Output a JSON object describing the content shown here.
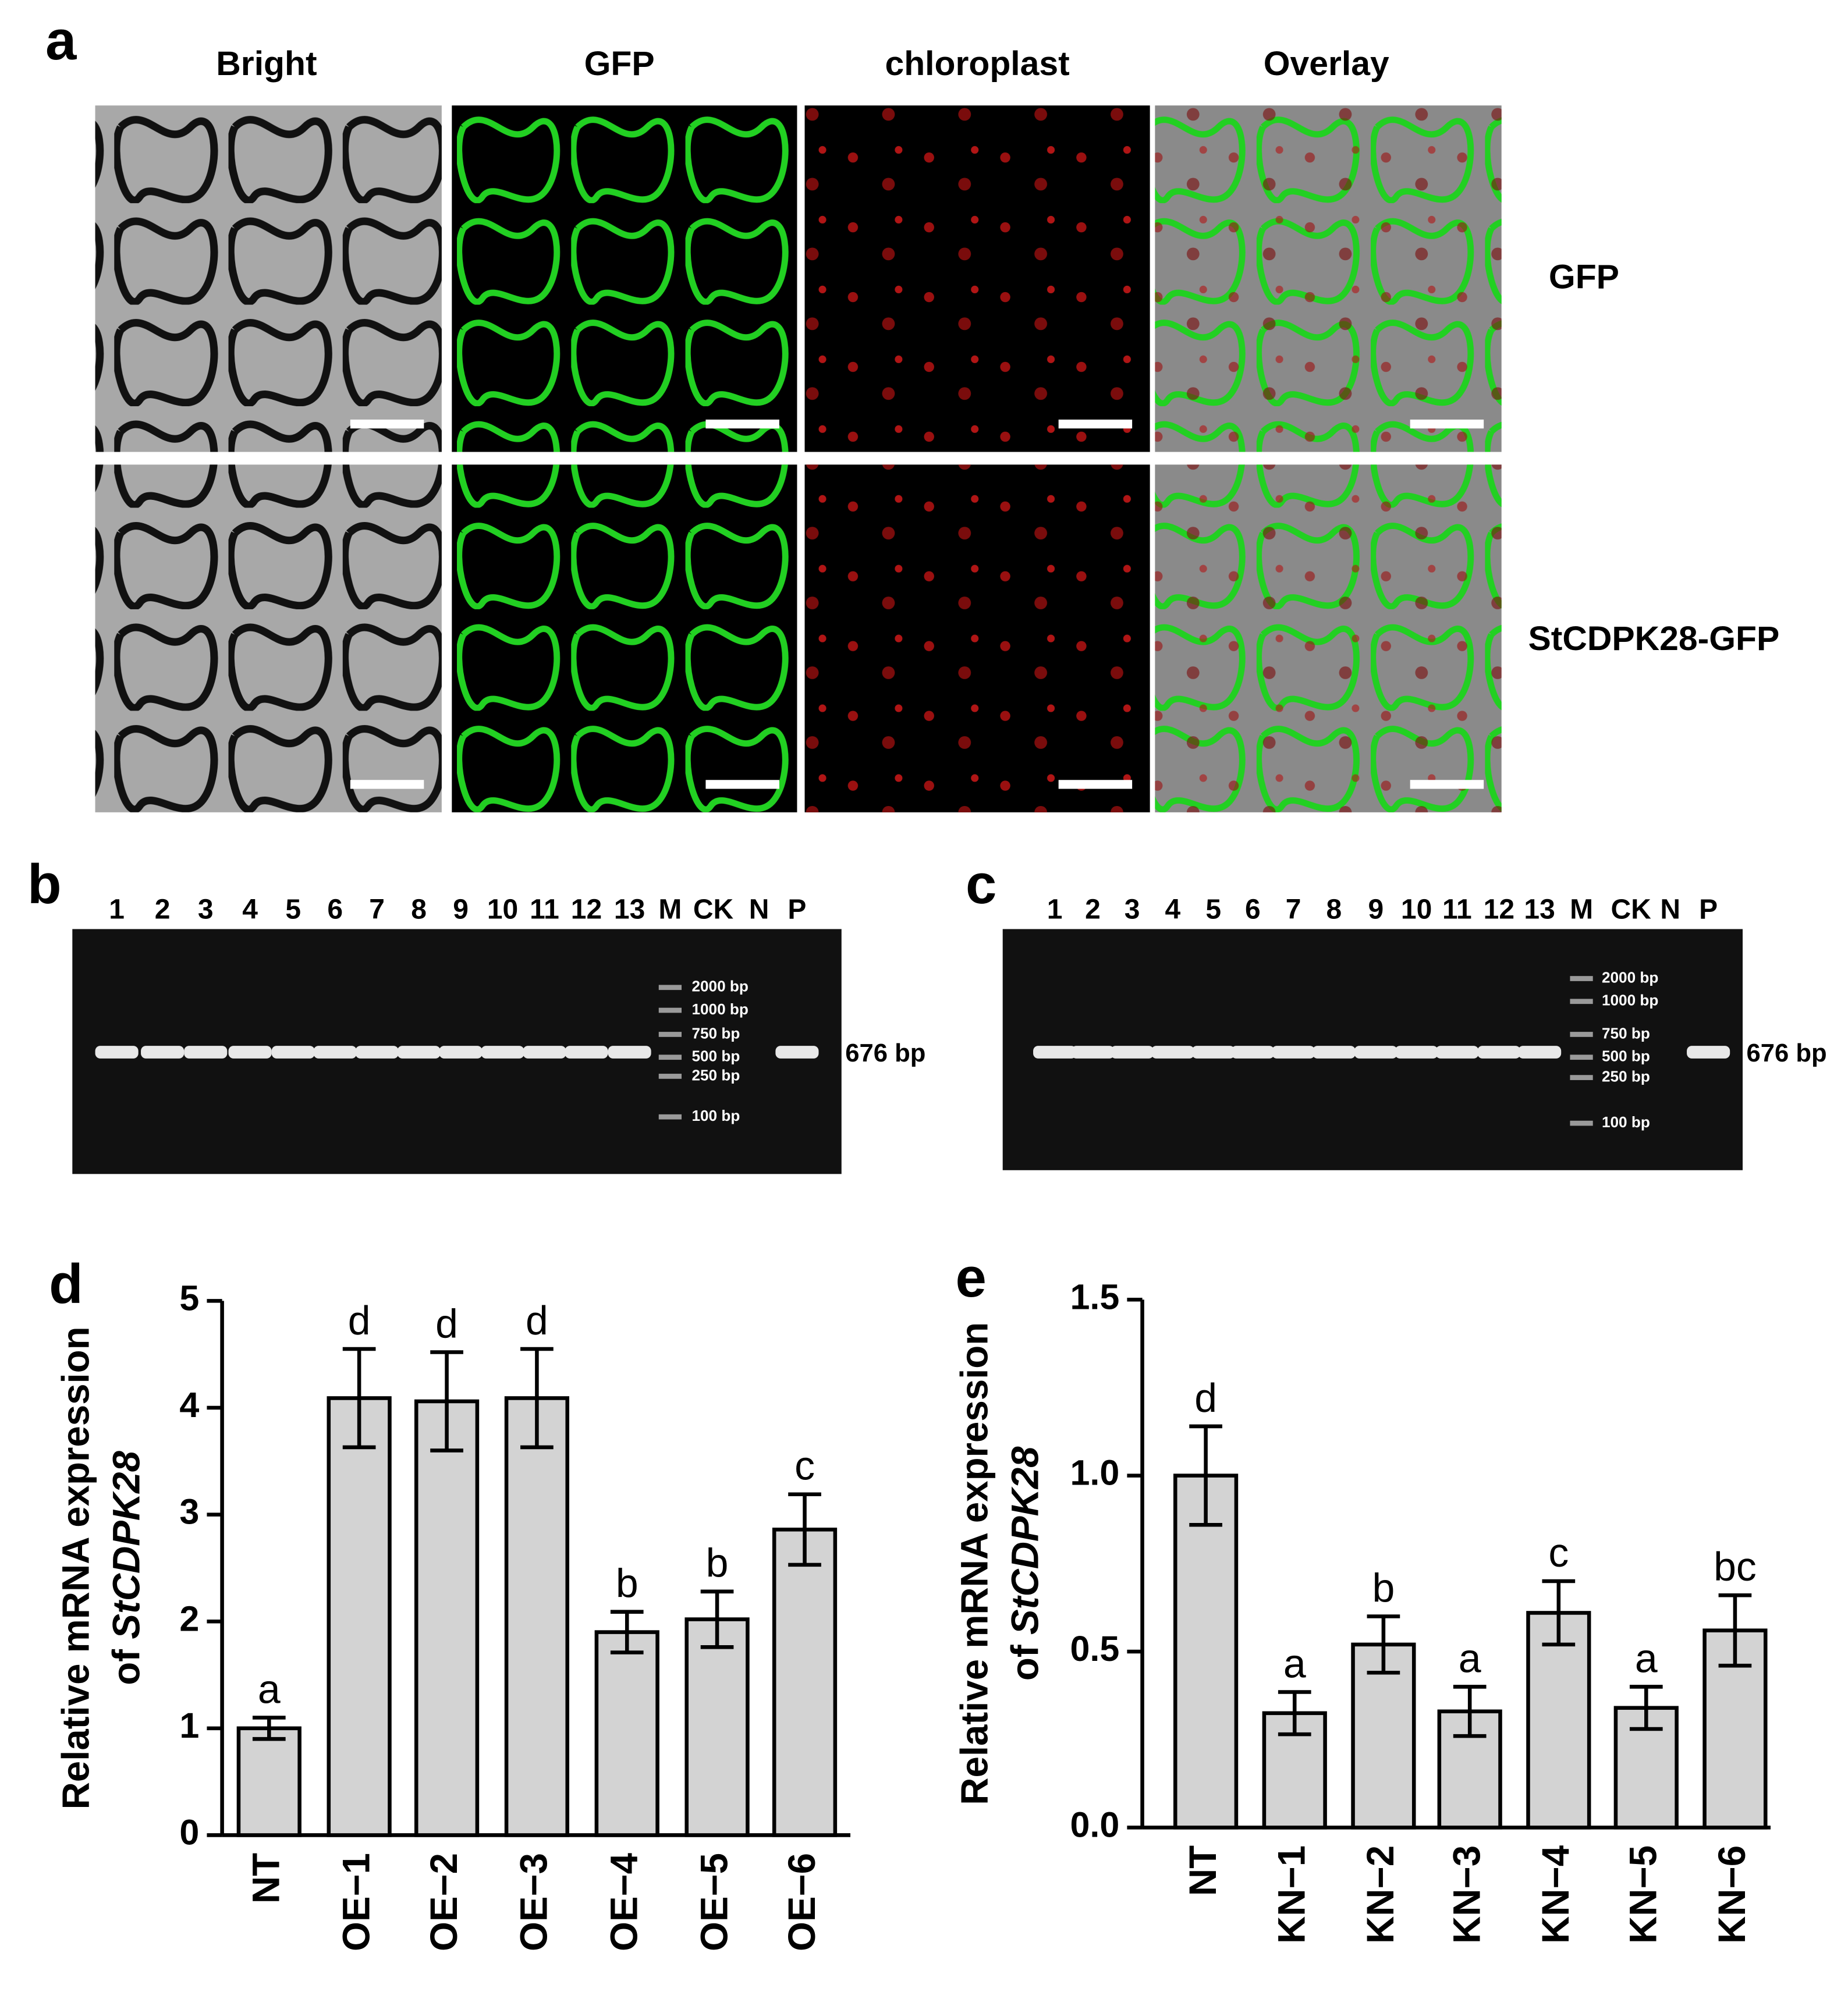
{
  "panel_labels": [
    "a",
    "b",
    "c",
    "d",
    "e"
  ],
  "microscopy": {
    "columns": [
      "Bright",
      "GFP",
      "chloroplast",
      "Overlay"
    ],
    "rows": [
      "GFP",
      "StCDPK28-GFP"
    ]
  },
  "gels": [
    {
      "lanes": [
        "1",
        "2",
        "3",
        "4",
        "5",
        "6",
        "7",
        "8",
        "9",
        "10",
        "11",
        "12",
        "13",
        "M",
        "CK",
        "N",
        "P"
      ],
      "ladder": [
        "2000 bp",
        "1000 bp",
        "750 bp",
        "500 bp",
        "250 bp",
        "100 bp"
      ],
      "band": "676 bp"
    },
    {
      "lanes": [
        "1",
        "2",
        "3",
        "4",
        "5",
        "6",
        "7",
        "8",
        "9",
        "10",
        "11",
        "12",
        "13",
        "M",
        "CK",
        "N",
        "P"
      ],
      "ladder": [
        "2000 bp",
        "1000 bp",
        "750 bp",
        "500 bp",
        "250 bp",
        "100 bp"
      ],
      "band": "676 bp"
    }
  ],
  "chart_data": [
    {
      "type": "bar",
      "y_label": {
        "line1": "Relative mRNA expression",
        "prefix": "of",
        "gene": "StCDPK28"
      },
      "categories": [
        "NT",
        "OE−1",
        "OE−2",
        "OE−3",
        "OE−4",
        "OE−5",
        "OE−6"
      ],
      "values": [
        1.0,
        4.09,
        4.06,
        4.09,
        1.9,
        2.02,
        2.86
      ],
      "errors": [
        0.1,
        0.46,
        0.46,
        0.46,
        0.19,
        0.26,
        0.33
      ],
      "letters": [
        "a",
        "d",
        "d",
        "d",
        "b",
        "b",
        "c"
      ],
      "color": "#d3d3d3",
      "ylim": [
        0,
        5
      ],
      "yticks": [
        0,
        1,
        2,
        3,
        4,
        5
      ]
    },
    {
      "type": "bar",
      "y_label": {
        "line1": "Relative mRNA expression",
        "prefix": "of",
        "gene": "StCDPK28"
      },
      "categories": [
        "NT",
        "KN−1",
        "KN−2",
        "KN−3",
        "KN−4",
        "KN−5",
        "KN−6"
      ],
      "values": [
        1.0,
        0.325,
        0.52,
        0.33,
        0.61,
        0.34,
        0.56
      ],
      "errors": [
        0.14,
        0.06,
        0.08,
        0.07,
        0.09,
        0.06,
        0.1
      ],
      "letters": [
        "d",
        "a",
        "b",
        "a",
        "c",
        "a",
        "bc"
      ],
      "color": "#d3d3d3",
      "ylim": [
        0,
        1.5
      ],
      "yticks": [
        {
          "value": 0,
          "label": "0.0"
        },
        {
          "value": 0.5,
          "label": "0.5"
        },
        {
          "value": 1,
          "label": "1.0"
        },
        {
          "value": 1.5,
          "label": "1.5"
        }
      ]
    }
  ]
}
